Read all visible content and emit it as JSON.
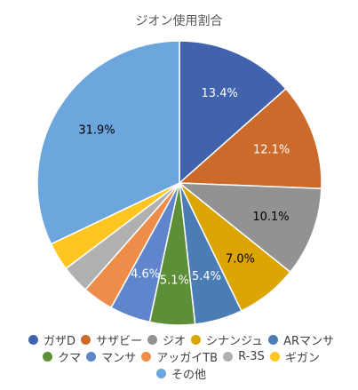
{
  "chart_data": {
    "type": "pie",
    "title": "ジオン使用割合",
    "categories": [
      "ガザD",
      "サザビー",
      "ジオ",
      "シナンジュ",
      "ARマンサ",
      "クマ",
      "マンサ",
      "アッガイTB",
      "R-3S",
      "ギガン",
      "その他"
    ],
    "values": [
      13.4,
      12.1,
      10.1,
      7.0,
      5.4,
      5.1,
      4.6,
      3.5,
      3.2,
      3.2,
      31.9
    ],
    "data_labels": [
      "13.4%",
      "12.1%",
      "10.1%",
      "7.0%",
      "5.4%",
      "5.1%",
      "4.6%",
      "",
      "",
      "",
      "31.9%"
    ],
    "colors": [
      "#4163AE",
      "#CB6A2B",
      "#929292",
      "#DBA503",
      "#4B7CB5",
      "#5D8F39",
      "#5F85CC",
      "#EE8D49",
      "#B0B0B0",
      "#FFC622",
      "#6DA6DC"
    ],
    "legend_position": "bottom",
    "legend_rows": [
      [
        0,
        1,
        2,
        3,
        4
      ],
      [
        5,
        6,
        7,
        8,
        9
      ],
      [
        10
      ]
    ]
  }
}
